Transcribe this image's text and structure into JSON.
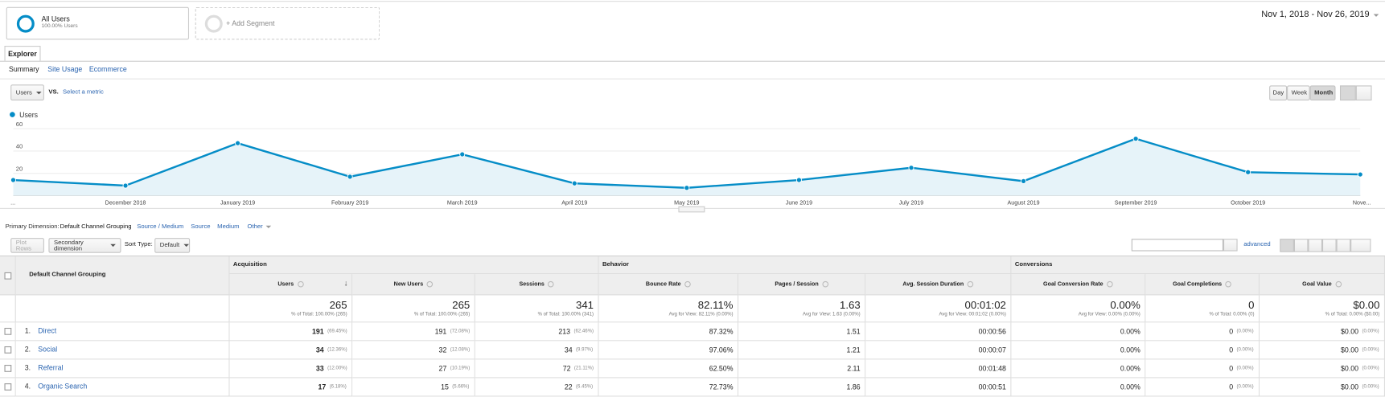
{
  "segment": {
    "name": "All Users",
    "detail": "100.00% Users"
  },
  "add_segment": "+ Add Segment",
  "date_range": "Nov 1, 2018 - Nov 26, 2019",
  "tab": "Explorer",
  "subtabs": [
    "Summary",
    "Site Usage",
    "Ecommerce"
  ],
  "metric_select": "Users",
  "vs": "VS.",
  "select_metric": "Select a metric",
  "granularity": [
    "Day",
    "Week",
    "Month"
  ],
  "chart_data": {
    "type": "line",
    "categories": [
      "...",
      "December 2018",
      "January 2019",
      "February 2019",
      "March 2019",
      "April 2019",
      "May 2019",
      "June 2019",
      "July 2019",
      "August 2019",
      "September 2019",
      "October 2019",
      "Nove..."
    ],
    "series": [
      {
        "name": "Users",
        "color": "#058dc7",
        "values": [
          14,
          9,
          47,
          17,
          37,
          11,
          7,
          14,
          25,
          13,
          51,
          21,
          19
        ]
      }
    ],
    "ylim": [
      0,
      60
    ],
    "yticks": [
      20,
      40,
      60
    ],
    "grid": true
  },
  "primary_dimension": {
    "label": "Primary Dimension:",
    "options": [
      "Default Channel Grouping",
      "Source / Medium",
      "Source",
      "Medium",
      "Other"
    ]
  },
  "controls": {
    "plot_rows": "Plot Rows",
    "secondary_dimension": "Secondary dimension",
    "sort_type_label": "Sort Type:",
    "sort_type": "Default",
    "advanced": "advanced"
  },
  "table": {
    "dimension_header": "Default Channel Grouping",
    "groups": [
      "Acquisition",
      "Behavior",
      "Conversions"
    ],
    "columns": [
      "Users",
      "New Users",
      "Sessions",
      "Bounce Rate",
      "Pages / Session",
      "Avg. Session Duration",
      "Goal Conversion Rate",
      "Goal Completions",
      "Goal Value"
    ],
    "totals": [
      {
        "value": "265",
        "detail": "% of Total: 100.00% (265)"
      },
      {
        "value": "265",
        "detail": "% of Total: 100.00% (265)"
      },
      {
        "value": "341",
        "detail": "% of Total: 100.00% (341)"
      },
      {
        "value": "82.11%",
        "detail": "Avg for View: 82.11% (0.00%)"
      },
      {
        "value": "1.63",
        "detail": "Avg for View: 1.63 (0.00%)"
      },
      {
        "value": "00:01:02",
        "detail": "Avg for View: 00:01:02 (0.00%)"
      },
      {
        "value": "0.00%",
        "detail": "Avg for View: 0.00% (0.00%)"
      },
      {
        "value": "0",
        "detail": "% of Total: 0.00% (0)"
      },
      {
        "value": "$0.00",
        "detail": "% of Total: 0.00% ($0.00)"
      }
    ],
    "rows": [
      {
        "index": "1.",
        "name": "Direct",
        "cells": [
          {
            "value": "191",
            "share": "(69.45%)"
          },
          {
            "value": "191",
            "share": "(72.08%)"
          },
          {
            "value": "213",
            "share": "(62.46%)"
          },
          {
            "value": "87.32%"
          },
          {
            "value": "1.51"
          },
          {
            "value": "00:00:56"
          },
          {
            "value": "0.00%"
          },
          {
            "value": "0",
            "share": "(0.00%)"
          },
          {
            "value": "$0.00",
            "share": "(0.00%)"
          }
        ]
      },
      {
        "index": "2.",
        "name": "Social",
        "cells": [
          {
            "value": "34",
            "share": "(12.36%)"
          },
          {
            "value": "32",
            "share": "(12.08%)"
          },
          {
            "value": "34",
            "share": "(9.97%)"
          },
          {
            "value": "97.06%"
          },
          {
            "value": "1.21"
          },
          {
            "value": "00:00:07"
          },
          {
            "value": "0.00%"
          },
          {
            "value": "0",
            "share": "(0.00%)"
          },
          {
            "value": "$0.00",
            "share": "(0.00%)"
          }
        ]
      },
      {
        "index": "3.",
        "name": "Referral",
        "cells": [
          {
            "value": "33",
            "share": "(12.00%)"
          },
          {
            "value": "27",
            "share": "(10.19%)"
          },
          {
            "value": "72",
            "share": "(21.11%)"
          },
          {
            "value": "62.50%"
          },
          {
            "value": "2.11"
          },
          {
            "value": "00:01:48"
          },
          {
            "value": "0.00%"
          },
          {
            "value": "0",
            "share": "(0.00%)"
          },
          {
            "value": "$0.00",
            "share": "(0.00%)"
          }
        ]
      },
      {
        "index": "4.",
        "name": "Organic Search",
        "cells": [
          {
            "value": "17",
            "share": "(6.18%)"
          },
          {
            "value": "15",
            "share": "(5.66%)"
          },
          {
            "value": "22",
            "share": "(6.45%)"
          },
          {
            "value": "72.73%"
          },
          {
            "value": "1.86"
          },
          {
            "value": "00:00:51"
          },
          {
            "value": "0.00%"
          },
          {
            "value": "0",
            "share": "(0.00%)"
          },
          {
            "value": "$0.00",
            "share": "(0.00%)"
          }
        ]
      }
    ]
  }
}
